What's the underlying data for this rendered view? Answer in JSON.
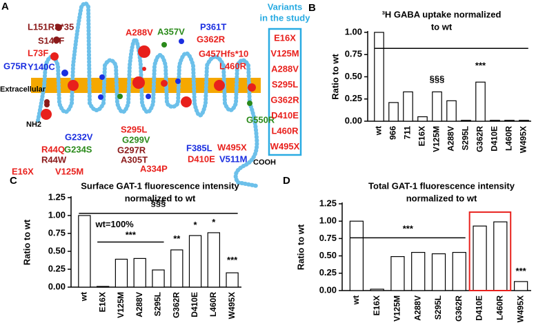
{
  "diagram": {
    "panel_label": "A",
    "labels": [
      {
        "text": "L151RS*35",
        "color": "#8b1a1a"
      },
      {
        "text": "S145F",
        "color": "#8b1a1a"
      },
      {
        "text": "L73F",
        "color": "#e8201c"
      },
      {
        "text": "G75R",
        "color": "#1a2ee0"
      },
      {
        "text": "Y140C",
        "color": "#1a2ee0"
      },
      {
        "text": "A288V",
        "color": "#e8201c"
      },
      {
        "text": "A357V",
        "color": "#2a8a1a"
      },
      {
        "text": "P361T",
        "color": "#1a2ee0"
      },
      {
        "text": "G362R",
        "color": "#e8201c"
      },
      {
        "text": "G457Hfs*10",
        "color": "#e8201c"
      },
      {
        "text": "L460R",
        "color": "#e8201c"
      },
      {
        "text": "Extracellular",
        "color": "#000000"
      },
      {
        "text": "NH2",
        "color": "#000000"
      },
      {
        "text": "G550R",
        "color": "#2a8a1a"
      },
      {
        "text": "G232V",
        "color": "#1a2ee0"
      },
      {
        "text": "S295L",
        "color": "#e8201c"
      },
      {
        "text": "G299V",
        "color": "#2a8a1a"
      },
      {
        "text": "R44Q",
        "color": "#e8201c"
      },
      {
        "text": "G234S",
        "color": "#2a8a1a"
      },
      {
        "text": "G297R",
        "color": "#8b1a1a"
      },
      {
        "text": "F385L",
        "color": "#1a2ee0"
      },
      {
        "text": "W495X",
        "color": "#e8201c"
      },
      {
        "text": "R44W",
        "color": "#8b1a1a"
      },
      {
        "text": "A305T",
        "color": "#8b1a1a"
      },
      {
        "text": "D410E",
        "color": "#e8201c"
      },
      {
        "text": "V511M",
        "color": "#1a2ee0"
      },
      {
        "text": "E16X",
        "color": "#e8201c"
      },
      {
        "text": "V125M",
        "color": "#e8201c"
      },
      {
        "text": "A334P",
        "color": "#e8201c"
      },
      {
        "text": "COOH",
        "color": "#000000"
      }
    ],
    "box_title": [
      "Variants",
      "in the study"
    ],
    "box_items": [
      "E16X",
      "V125M",
      "A288V",
      "S295L",
      "G362R",
      "D410E",
      "L460R",
      "W495X"
    ]
  },
  "chart_data": [
    {
      "type": "bar",
      "panel_label": "B",
      "title": [
        "³H GABA uptake normalized",
        "to wt"
      ],
      "y_label": "Ratio to wt",
      "categories": [
        "wt",
        "966",
        "711",
        "E16X",
        "V125M",
        "A288V",
        "S295L",
        "G362R",
        "D410E",
        "L460R",
        "W495X"
      ],
      "values": [
        1.0,
        0.21,
        0.33,
        0.05,
        0.33,
        0.23,
        0.01,
        0.44,
        0.01,
        0.01,
        0.01
      ],
      "ylim": [
        0,
        1.0
      ],
      "yticks": [
        {
          "value": 0,
          "label": "0.00"
        },
        {
          "value": 0.25,
          "label": "0.25"
        },
        {
          "value": 0.5,
          "label": "0.50"
        },
        {
          "value": 0.75,
          "label": "0.75"
        },
        {
          "value": 1.0,
          "label": "1.00"
        }
      ],
      "annotations": [
        "§§§",
        "***"
      ]
    },
    {
      "type": "bar",
      "panel_label": "C",
      "title": [
        "Surface GAT-1 fluorescence intensity",
        "normalized to wt"
      ],
      "y_label": "Ratio to wt",
      "categories": [
        "wt",
        "E16X",
        "V125M",
        "A288V",
        "S295L",
        "G362R",
        "D410E",
        "L460R",
        "W495X"
      ],
      "values": [
        1.0,
        0.01,
        0.39,
        0.4,
        0.24,
        0.52,
        0.72,
        0.76,
        0.2
      ],
      "ylim": [
        0,
        1.25
      ],
      "yticks": [
        {
          "value": 0,
          "label": "0.00"
        },
        {
          "value": 0.25,
          "label": "0.25"
        },
        {
          "value": 0.5,
          "label": "0.50"
        },
        {
          "value": 0.75,
          "label": "0.75"
        },
        {
          "value": 1.0,
          "label": "1.00"
        },
        {
          "value": 1.25,
          "label": "1.25"
        }
      ],
      "annotations": [
        "§§§",
        "wt=100%",
        "***",
        "**",
        "*",
        "*",
        "***"
      ]
    },
    {
      "type": "bar",
      "panel_label": "D",
      "title": [
        "Total GAT-1 fluorescence intensity",
        "normalized to wt"
      ],
      "y_label": "Ratio to wt",
      "categories": [
        "wt",
        "E16X",
        "V125M",
        "A288V",
        "S295L",
        "G362R",
        "D410E",
        "L460R",
        "W495X"
      ],
      "values": [
        1.0,
        0.02,
        0.49,
        0.55,
        0.53,
        0.55,
        0.93,
        0.99,
        0.13
      ],
      "ylim": [
        0,
        1.25
      ],
      "yticks": [
        {
          "value": 0,
          "label": "0.00"
        },
        {
          "value": 0.25,
          "label": "0.25"
        },
        {
          "value": 0.5,
          "label": "0.50"
        },
        {
          "value": 0.75,
          "label": "0.75"
        },
        {
          "value": 1.0,
          "label": "1.00"
        },
        {
          "value": 1.25,
          "label": "1.25"
        }
      ],
      "annotations": [
        "***",
        "***"
      ]
    }
  ]
}
